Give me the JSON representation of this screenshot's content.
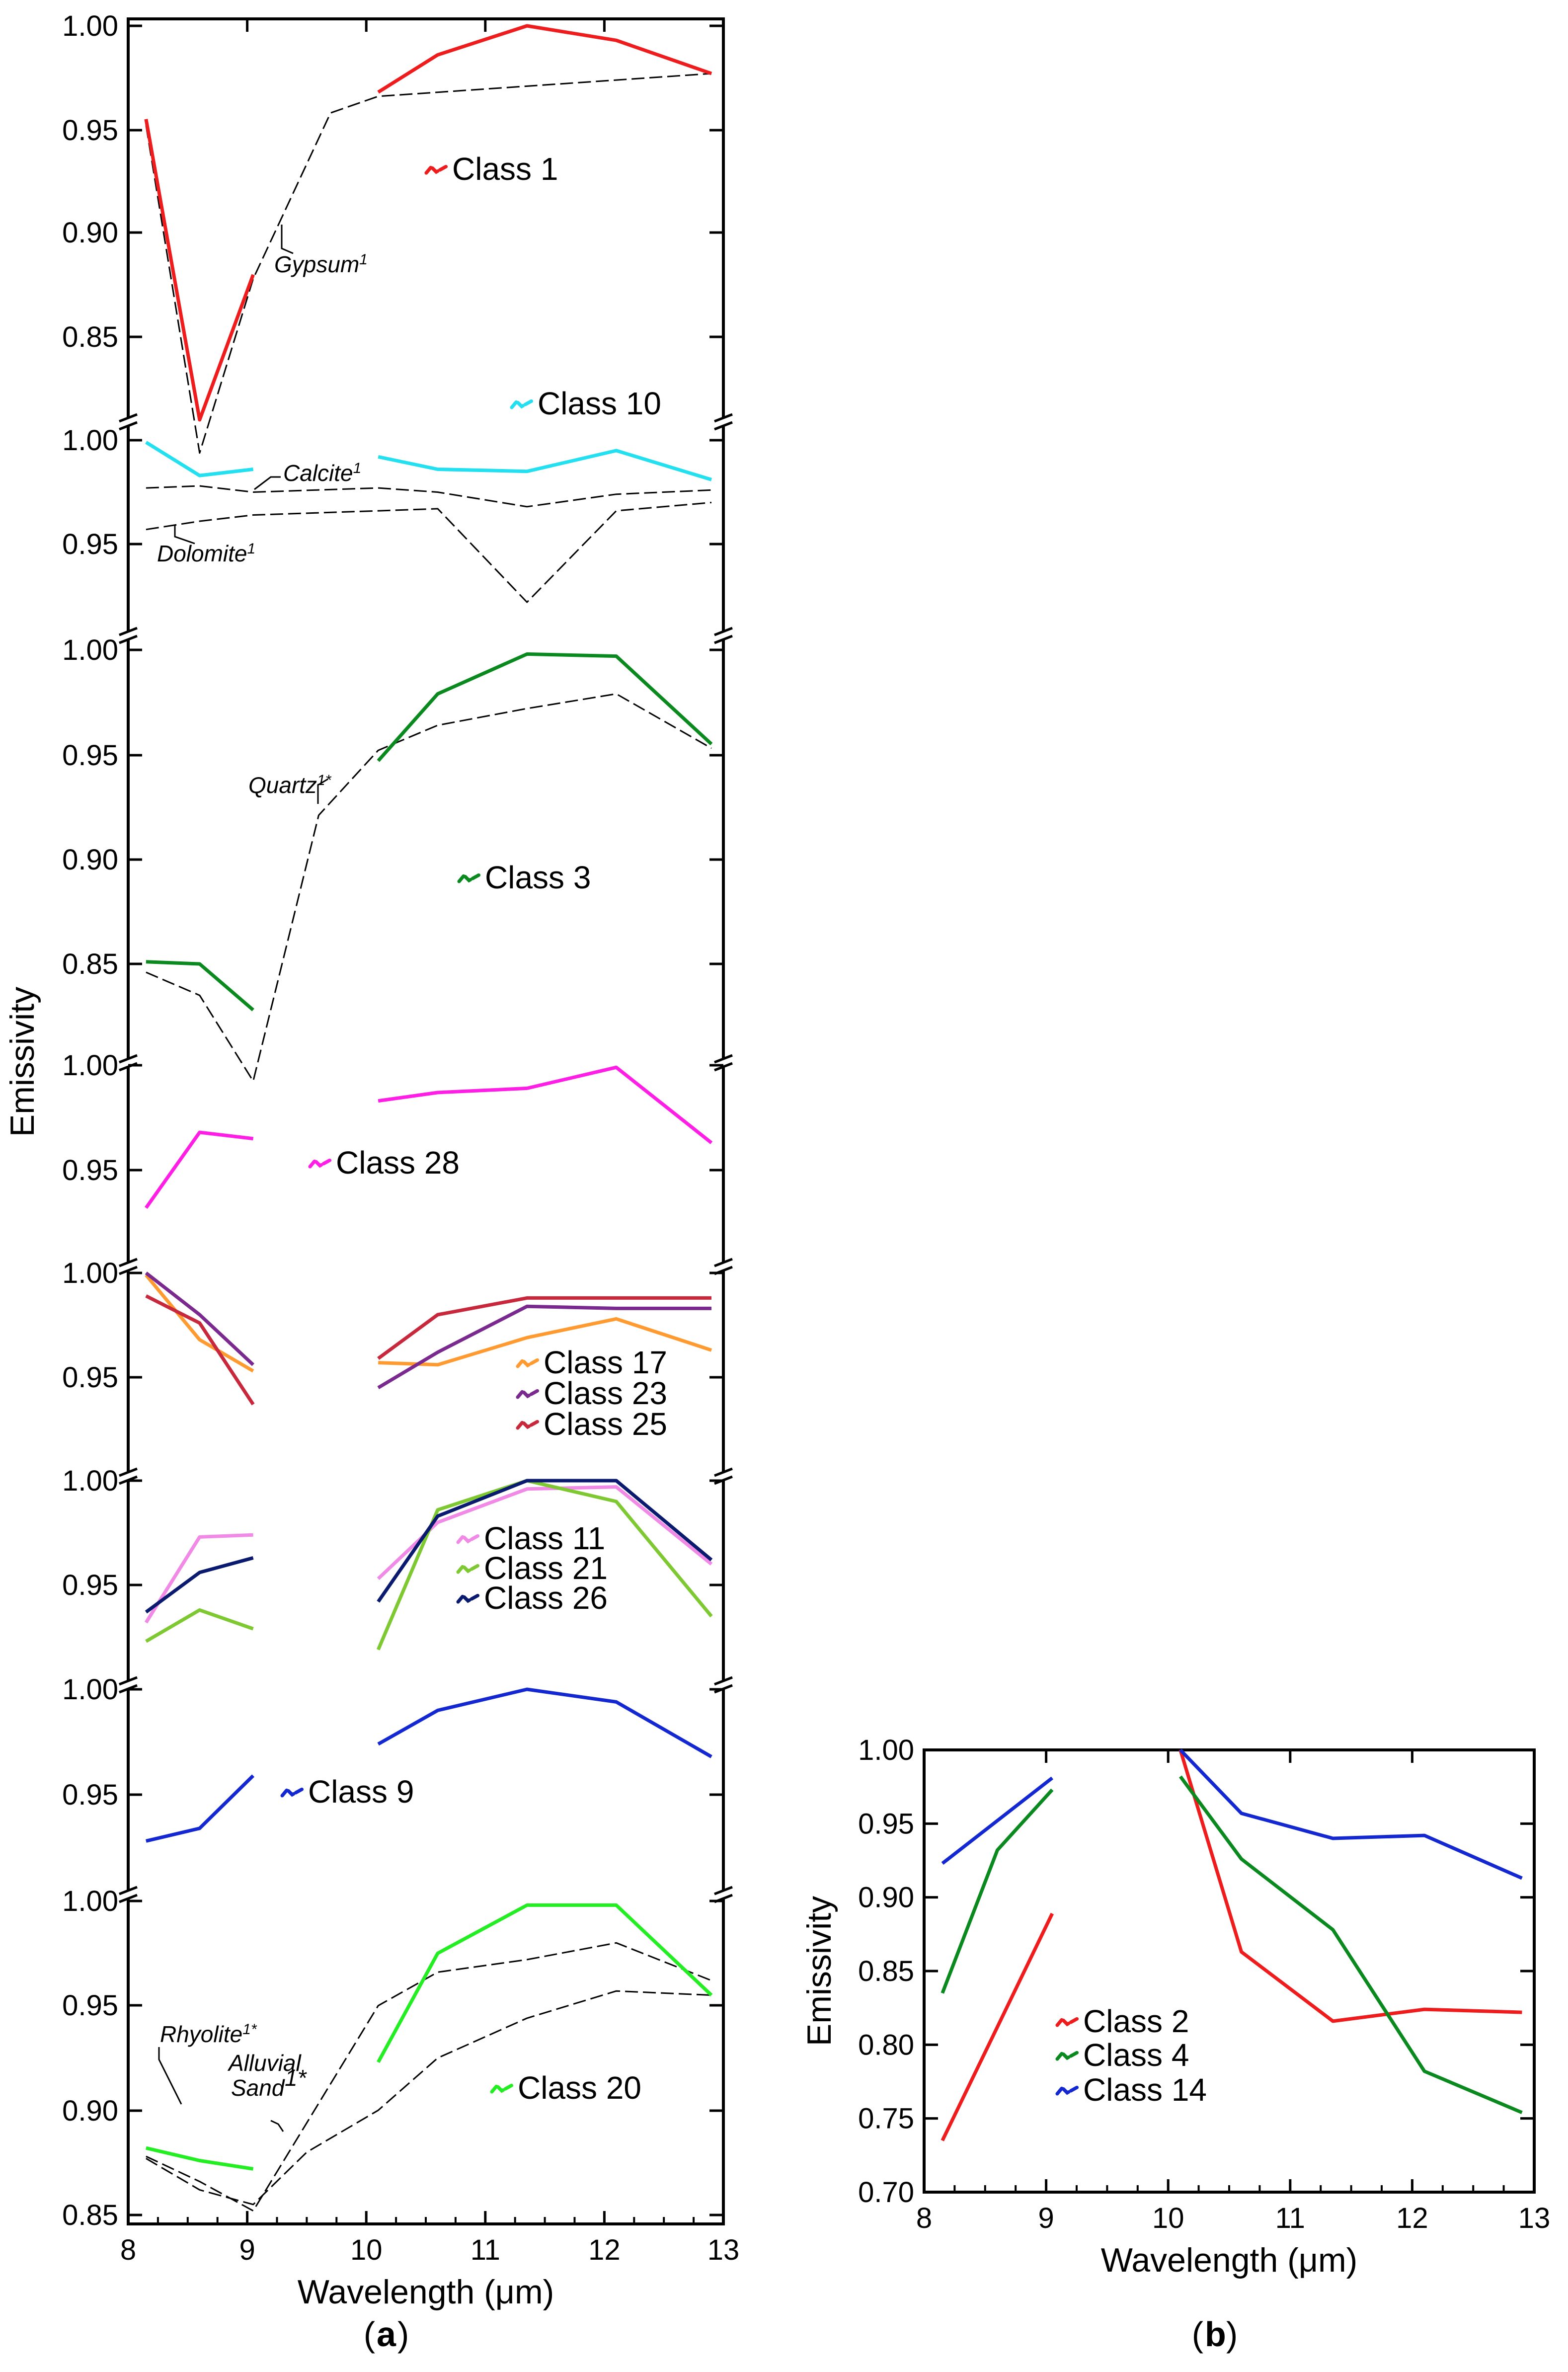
{
  "chart_data": [
    {
      "panel": "a",
      "type": "line",
      "xlabel": "Wavelength (μm)",
      "ylabel": "Emissivity",
      "xlim": [
        8,
        13
      ],
      "xticks": [
        "8",
        "9",
        "10",
        "11",
        "12",
        "13"
      ],
      "panel_label": "a",
      "stacked_segments": [
        {
          "ylim": [
            0.8,
            1.0
          ],
          "yticks": [
            "0.85",
            "0.90",
            "0.95",
            "1.00"
          ],
          "series": [
            {
              "name": "Class 1",
              "color": "#ee1c1c",
              "x": [
                8.15,
                8.6,
                9.05,
                10.1,
                10.6,
                11.35,
                12.1,
                12.9
              ],
              "y": [
                0.955,
                0.81,
                0.88,
                0.968,
                0.986,
                1.0,
                0.993,
                0.977
              ]
            },
            {
              "name": "Class 10",
              "color": "#22e0f0",
              "x": [
                8.15,
                8.6,
                9.05,
                10.1,
                10.6,
                11.35,
                12.1,
                12.9
              ],
              "y": [
                0.999,
                0.983,
                0.986,
                0.992,
                0.986,
                0.985,
                0.995,
                0.981
              ]
            }
          ],
          "references": [
            {
              "name": "Gypsum",
              "label": "Gypsum",
              "x": [
                8.15,
                8.6,
                9.05,
                9.7,
                10.1,
                12.9
              ],
              "y": [
                0.952,
                0.794,
                0.878,
                0.958,
                0.966,
                0.977
              ]
            },
            {
              "name": "Calcite",
              "label": "Calcite",
              "x": [
                8.15,
                8.6,
                9.05,
                10.1,
                10.6,
                11.35,
                12.1,
                12.9
              ],
              "y": [
                0.977,
                0.978,
                0.975,
                0.977,
                0.975,
                0.968,
                0.974,
                0.976
              ]
            },
            {
              "name": "Dolomite",
              "label": "Dolomite",
              "x": [
                8.15,
                8.6,
                9.05,
                10.1,
                10.6,
                11.35,
                12.1,
                12.9
              ],
              "y": [
                0.957,
                0.961,
                0.964,
                0.966,
                0.967,
                0.922,
                0.966,
                0.97
              ]
            }
          ]
        },
        {
          "ylim": [
            0.8,
            1.0
          ],
          "yticks": [
            "0.85",
            "0.90",
            "0.95",
            "1.00"
          ],
          "series": [
            {
              "name": "Class 3",
              "color": "#0a8a1e",
              "x": [
                8.15,
                8.6,
                9.05,
                10.1,
                10.6,
                11.35,
                12.1,
                12.9
              ],
              "y": [
                0.851,
                0.85,
                0.828,
                0.947,
                0.979,
                0.998,
                0.997,
                0.955
              ]
            }
          ],
          "references": [
            {
              "name": "Quartz",
              "label": "Quartz",
              "x": [
                8.15,
                8.6,
                9.05,
                9.6,
                10.1,
                10.6,
                11.35,
                12.1,
                12.9
              ],
              "y": [
                0.846,
                0.835,
                0.794,
                0.921,
                0.952,
                0.964,
                0.972,
                0.979,
                0.953
              ]
            }
          ]
        },
        {
          "ylim": [
            0.92,
            1.0
          ],
          "yticks": [
            "0.95",
            "1.00"
          ],
          "series": [
            {
              "name": "Class 28",
              "color": "#ff1ee6",
              "x": [
                8.15,
                8.6,
                9.05,
                10.1,
                10.6,
                11.35,
                12.1,
                12.9
              ],
              "y": [
                0.932,
                0.968,
                0.965,
                0.983,
                0.987,
                0.989,
                0.999,
                0.963
              ]
            }
          ]
        },
        {
          "ylim": [
            0.92,
            1.0
          ],
          "yticks": [
            "0.95",
            "1.00"
          ],
          "series": [
            {
              "name": "Class 17",
              "color": "#ff9a30",
              "x": [
                8.15,
                8.6,
                9.05,
                10.1,
                10.6,
                11.35,
                12.1,
                12.9
              ],
              "y": [
                0.999,
                0.968,
                0.953,
                0.957,
                0.956,
                0.969,
                0.978,
                0.963
              ]
            },
            {
              "name": "Class 23",
              "color": "#7a2a8e",
              "x": [
                8.15,
                8.6,
                9.05,
                10.1,
                10.6,
                11.35,
                12.1,
                12.9
              ],
              "y": [
                1.0,
                0.98,
                0.956,
                0.945,
                0.962,
                0.984,
                0.983,
                0.983
              ]
            },
            {
              "name": "Class 25",
              "color": "#c8283c",
              "x": [
                8.15,
                8.6,
                9.05,
                10.1,
                10.6,
                11.35,
                12.1,
                12.9
              ],
              "y": [
                0.989,
                0.976,
                0.937,
                0.959,
                0.98,
                0.988,
                0.988,
                0.988
              ]
            }
          ]
        },
        {
          "ylim": [
            0.92,
            1.0
          ],
          "yticks": [
            "0.95",
            "1.00"
          ],
          "series": [
            {
              "name": "Class 11",
              "color": "#f08ae6",
              "x": [
                8.15,
                8.6,
                9.05,
                10.1,
                10.6,
                11.35,
                12.1,
                12.9
              ],
              "y": [
                0.932,
                0.973,
                0.974,
                0.953,
                0.98,
                0.996,
                0.997,
                0.96
              ]
            },
            {
              "name": "Class 21",
              "color": "#7ec832",
              "x": [
                8.15,
                8.6,
                9.05,
                10.1,
                10.6,
                11.35,
                12.1,
                12.9
              ],
              "y": [
                0.923,
                0.938,
                0.929,
                0.919,
                0.986,
                1.0,
                0.99,
                0.935
              ]
            },
            {
              "name": "Class 26",
              "color": "#0a1a6e",
              "x": [
                8.15,
                8.6,
                9.05,
                10.1,
                10.6,
                11.35,
                12.1,
                12.9
              ],
              "y": [
                0.937,
                0.956,
                0.963,
                0.942,
                0.983,
                1.0,
                1.0,
                0.962
              ]
            }
          ]
        },
        {
          "ylim": [
            0.92,
            1.0
          ],
          "yticks": [
            "0.95",
            "1.00"
          ],
          "series": [
            {
              "name": "Class 9",
              "color": "#1428d2",
              "x": [
                8.15,
                8.6,
                9.05,
                10.1,
                10.6,
                11.35,
                12.1,
                12.9
              ],
              "y": [
                0.928,
                0.934,
                0.959,
                0.974,
                0.99,
                1.0,
                0.994,
                0.968
              ]
            }
          ]
        },
        {
          "ylim": [
            0.85,
            1.0
          ],
          "yticks": [
            "0.85",
            "0.90",
            "0.95",
            "1.00"
          ],
          "series": [
            {
              "name": "Class 20",
              "color": "#22ee22",
              "x": [
                8.15,
                8.6,
                9.05,
                10.1,
                10.6,
                11.35,
                12.1,
                12.9
              ],
              "y": [
                0.882,
                0.876,
                0.872,
                0.923,
                0.975,
                0.998,
                0.998,
                0.955
              ]
            }
          ],
          "references": [
            {
              "name": "Rhyolite",
              "label": "Rhyolite",
              "x": [
                8.15,
                8.6,
                9.05,
                10.1,
                10.6,
                11.35,
                12.1,
                12.9
              ],
              "y": [
                0.878,
                0.866,
                0.852,
                0.95,
                0.966,
                0.972,
                0.98,
                0.962
              ]
            },
            {
              "name": "Alluvial Sand",
              "label": "Alluvial Sand",
              "x": [
                8.15,
                8.6,
                9.05,
                9.5,
                10.1,
                10.6,
                11.35,
                12.1,
                12.9
              ],
              "y": [
                0.877,
                0.862,
                0.855,
                0.88,
                0.9,
                0.925,
                0.944,
                0.957,
                0.955
              ]
            }
          ]
        }
      ]
    },
    {
      "panel": "b",
      "type": "line",
      "xlabel": "Wavelength (μm)",
      "ylabel": "Emissivity",
      "xlim": [
        8,
        13
      ],
      "ylim": [
        0.7,
        1.0
      ],
      "xticks": [
        "8",
        "9",
        "10",
        "11",
        "12",
        "13"
      ],
      "yticks": [
        "0.70",
        "0.75",
        "0.80",
        "0.85",
        "0.90",
        "0.95",
        "1.00"
      ],
      "panel_label": "b",
      "series": [
        {
          "name": "Class 2",
          "color": "#ee1c1c",
          "x": [
            8.15,
            9.05,
            10.1,
            10.6,
            11.35,
            12.1,
            12.9
          ],
          "y": [
            0.735,
            0.889,
            1.0,
            0.863,
            0.816,
            0.824,
            0.822
          ]
        },
        {
          "name": "Class 4",
          "color": "#0a8a1e",
          "x": [
            8.15,
            8.6,
            9.05,
            10.1,
            10.6,
            11.35,
            12.1,
            12.9
          ],
          "y": [
            0.835,
            0.932,
            0.973,
            0.982,
            0.926,
            0.878,
            0.782,
            0.754
          ]
        },
        {
          "name": "Class 14",
          "color": "#1428d2",
          "x": [
            8.15,
            9.05,
            10.1,
            10.6,
            11.35,
            12.1,
            12.9
          ],
          "y": [
            0.923,
            0.981,
            1.0,
            0.957,
            0.94,
            0.942,
            0.913
          ]
        }
      ]
    }
  ]
}
